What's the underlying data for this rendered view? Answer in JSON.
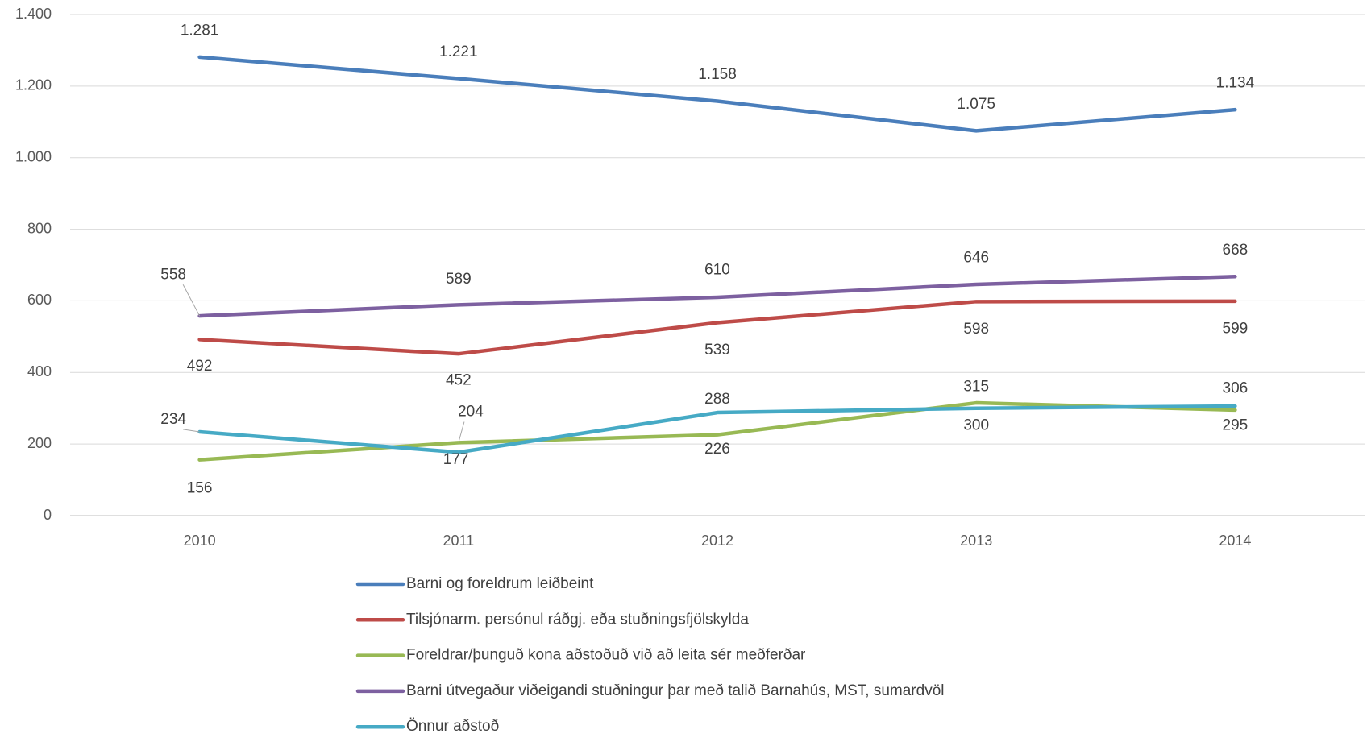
{
  "chart_data": {
    "type": "line",
    "categories": [
      "2010",
      "2011",
      "2012",
      "2013",
      "2014"
    ],
    "ylim": [
      0,
      1400
    ],
    "yticks": [
      0,
      200,
      400,
      600,
      800,
      {
        "value": 1000,
        "label": "1.000"
      },
      {
        "value": 1200,
        "label": "1.200"
      },
      {
        "value": 1400,
        "label": "1.400"
      }
    ],
    "grid": true,
    "legend": "bottom",
    "series": [
      {
        "name": "Barni og foreldrum leiðbeint",
        "color": "#4a7ebb",
        "values": [
          1281,
          1221,
          1158,
          1075,
          1134
        ],
        "value_labels": [
          "1.281",
          "1.221",
          "1.158",
          "1.075",
          "1.134"
        ]
      },
      {
        "name": "Tilsjónarm. persónul ráðgj. eða stuðningsfjölskylda",
        "color": "#be4b48",
        "values": [
          492,
          452,
          539,
          598,
          599
        ]
      },
      {
        "name": "Foreldrar/þunguð kona aðstoðuð við að leita sér meðferðar",
        "color": "#98b954",
        "values": [
          156,
          204,
          226,
          315,
          295
        ]
      },
      {
        "name": "Barni útvegaður viðeigandi stuðningur þar með talið Barnahús, MST, sumardvöl",
        "color": "#7d60a0",
        "values": [
          558,
          589,
          610,
          646,
          668
        ]
      },
      {
        "name": "Önnur aðstoð",
        "color": "#46aac5",
        "values": [
          234,
          177,
          288,
          300,
          306
        ]
      }
    ]
  }
}
